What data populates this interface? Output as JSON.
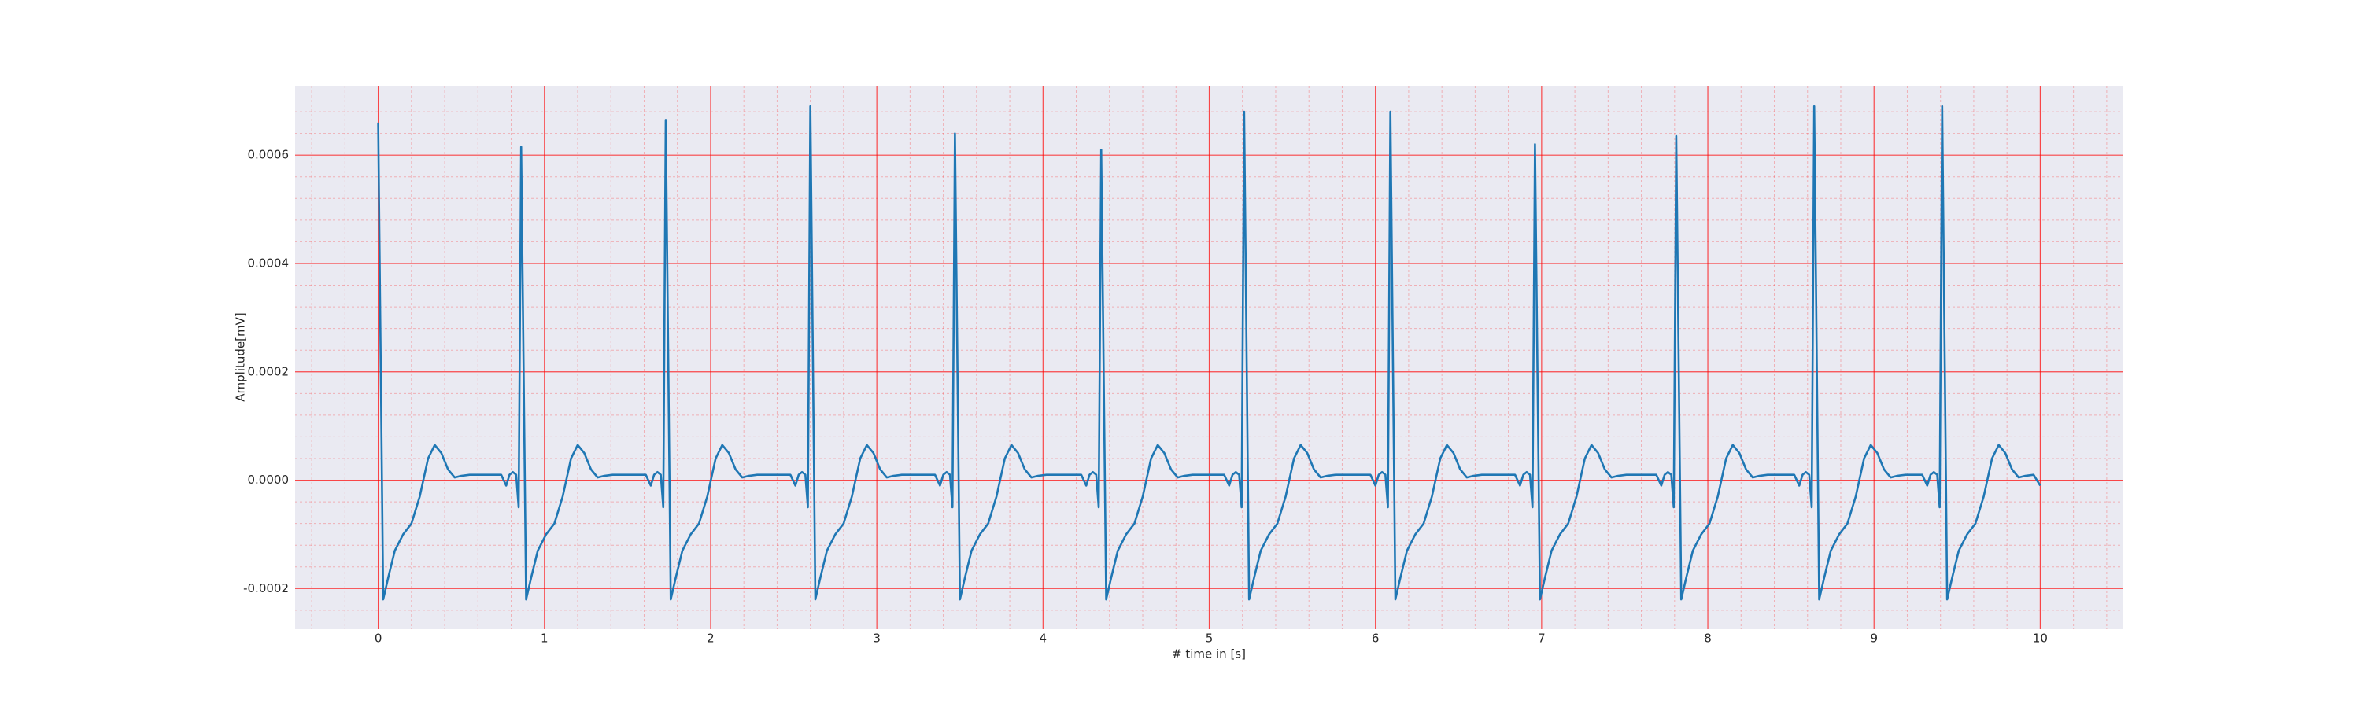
{
  "chart_data": {
    "type": "line",
    "xlabel": "# time in [s]",
    "ylabel": "Amplitude[mV]",
    "color": "#1f77b4",
    "grid": true,
    "grid_color": "#ff0000",
    "background": "#eaeaf2",
    "xlim": [
      -0.5,
      10.5
    ],
    "ylim": [
      -0.000275,
      0.000728
    ],
    "xticks": [
      0,
      1,
      2,
      3,
      4,
      5,
      6,
      7,
      8,
      9,
      10
    ],
    "yticks": [
      -0.0002,
      {
        "value": 0,
        "label": "0.0000"
      },
      0.0002,
      0.0004,
      0.0006
    ],
    "xminorticks": [
      -0.4,
      -0.2,
      0.2,
      0.4,
      0.6,
      0.8,
      1.2,
      1.4,
      1.6,
      1.8,
      2.2,
      2.4,
      2.6,
      2.8,
      3.2,
      3.4,
      3.6,
      3.8,
      4.2,
      4.4,
      4.6,
      4.8,
      5.2,
      5.4,
      5.6,
      5.8,
      6.2,
      6.4,
      6.6,
      6.8,
      7.2,
      7.4,
      7.6,
      7.8,
      8.2,
      8.4,
      8.6,
      8.8,
      9.2,
      9.4,
      9.6,
      9.8,
      10.2,
      10.4
    ],
    "yminorticks": [
      -0.00024,
      -0.00016,
      -0.00012,
      -8e-05,
      -4e-05,
      4e-05,
      8e-05,
      0.00012,
      0.00016,
      0.00024,
      0.00028,
      0.00032,
      0.00036,
      0.00044,
      0.00048,
      0.00052,
      0.00056,
      0.00064,
      0.00068,
      0.00072
    ],
    "x": [
      0,
      0.03,
      0.06,
      0.1,
      0.15,
      0.2,
      0.25,
      0.3,
      0.34,
      0.38,
      0.42,
      0.46,
      0.5,
      0.55,
      0.74,
      0.77,
      0.79,
      0.81,
      0.83,
      0.845,
      0.86,
      0.89,
      0.92,
      0.96,
      1.01,
      1.06,
      1.11,
      1.16,
      1.2,
      1.24,
      1.28,
      1.32,
      1.36,
      1.41,
      1.61,
      1.64,
      1.66,
      1.68,
      1.7,
      1.715,
      1.73,
      1.76,
      1.79,
      1.83,
      1.88,
      1.93,
      1.98,
      2.03,
      2.07,
      2.11,
      2.15,
      2.19,
      2.23,
      2.28,
      2.48,
      2.51,
      2.53,
      2.55,
      2.57,
      2.585,
      2.6,
      2.63,
      2.66,
      2.7,
      2.75,
      2.8,
      2.85,
      2.9,
      2.94,
      2.98,
      3.02,
      3.06,
      3.1,
      3.15,
      3.35,
      3.38,
      3.4,
      3.42,
      3.44,
      3.455,
      3.47,
      3.5,
      3.53,
      3.57,
      3.62,
      3.67,
      3.72,
      3.77,
      3.81,
      3.85,
      3.89,
      3.93,
      3.97,
      4.02,
      4.23,
      4.26,
      4.28,
      4.3,
      4.32,
      4.335,
      4.35,
      4.38,
      4.41,
      4.45,
      4.5,
      4.55,
      4.6,
      4.65,
      4.69,
      4.73,
      4.77,
      4.81,
      4.85,
      4.9,
      5.09,
      5.12,
      5.14,
      5.16,
      5.18,
      5.195,
      5.21,
      5.24,
      5.27,
      5.31,
      5.36,
      5.41,
      5.46,
      5.51,
      5.55,
      5.59,
      5.63,
      5.67,
      5.71,
      5.76,
      5.97,
      6.0,
      6.02,
      6.04,
      6.06,
      6.075,
      6.09,
      6.12,
      6.15,
      6.19,
      6.24,
      6.29,
      6.34,
      6.39,
      6.43,
      6.47,
      6.51,
      6.55,
      6.59,
      6.64,
      6.84,
      6.87,
      6.89,
      6.91,
      6.93,
      6.945,
      6.96,
      6.99,
      7.02,
      7.06,
      7.11,
      7.16,
      7.21,
      7.26,
      7.3,
      7.34,
      7.38,
      7.42,
      7.46,
      7.51,
      7.69,
      7.72,
      7.74,
      7.76,
      7.78,
      7.795,
      7.81,
      7.84,
      7.87,
      7.91,
      7.96,
      8.01,
      8.06,
      8.11,
      8.15,
      8.19,
      8.23,
      8.27,
      8.31,
      8.36,
      8.52,
      8.55,
      8.57,
      8.59,
      8.61,
      8.625,
      8.64,
      8.67,
      8.7,
      8.74,
      8.79,
      8.84,
      8.89,
      8.94,
      8.98,
      9.02,
      9.06,
      9.1,
      9.14,
      9.19,
      9.29,
      9.32,
      9.34,
      9.36,
      9.38,
      9.395,
      9.41,
      9.44,
      9.47,
      9.51,
      9.56,
      9.61,
      9.66,
      9.71,
      9.75,
      9.79,
      9.83,
      9.87,
      9.91,
      9.96,
      10.0
    ],
    "values": [
      0.00066,
      -0.00022,
      -0.00018,
      -0.00013,
      -0.0001,
      -8e-05,
      -3e-05,
      4e-05,
      6.5e-05,
      5e-05,
      2e-05,
      5e-06,
      8e-06,
      1e-05,
      1e-05,
      -1e-05,
      1e-05,
      1.5e-05,
      1e-05,
      -5e-05,
      0.000615,
      -0.00022,
      -0.00018,
      -0.00013,
      -0.0001,
      -8e-05,
      -3e-05,
      4e-05,
      6.5e-05,
      5e-05,
      2e-05,
      5e-06,
      8e-06,
      1e-05,
      1e-05,
      -1e-05,
      1e-05,
      1.5e-05,
      1e-05,
      -5e-05,
      0.000665,
      -0.00022,
      -0.00018,
      -0.00013,
      -0.0001,
      -8e-05,
      -3e-05,
      4e-05,
      6.5e-05,
      5e-05,
      2e-05,
      5e-06,
      8e-06,
      1e-05,
      1e-05,
      -1e-05,
      1e-05,
      1.5e-05,
      1e-05,
      -5e-05,
      0.00069,
      -0.00022,
      -0.00018,
      -0.00013,
      -0.0001,
      -8e-05,
      -3e-05,
      4e-05,
      6.5e-05,
      5e-05,
      2e-05,
      5e-06,
      8e-06,
      1e-05,
      1e-05,
      -1e-05,
      1e-05,
      1.5e-05,
      1e-05,
      -5e-05,
      0.00064,
      -0.00022,
      -0.00018,
      -0.00013,
      -0.0001,
      -8e-05,
      -3e-05,
      4e-05,
      6.5e-05,
      5e-05,
      2e-05,
      5e-06,
      8e-06,
      1e-05,
      1e-05,
      -1e-05,
      1e-05,
      1.5e-05,
      1e-05,
      -5e-05,
      0.00061,
      -0.00022,
      -0.00018,
      -0.00013,
      -0.0001,
      -8e-05,
      -3e-05,
      4e-05,
      6.5e-05,
      5e-05,
      2e-05,
      5e-06,
      8e-06,
      1e-05,
      1e-05,
      -1e-05,
      1e-05,
      1.5e-05,
      1e-05,
      -5e-05,
      0.00068,
      -0.00022,
      -0.00018,
      -0.00013,
      -0.0001,
      -8e-05,
      -3e-05,
      4e-05,
      6.5e-05,
      5e-05,
      2e-05,
      5e-06,
      8e-06,
      1e-05,
      1e-05,
      -1e-05,
      1e-05,
      1.5e-05,
      1e-05,
      -5e-05,
      0.00068,
      -0.00022,
      -0.00018,
      -0.00013,
      -0.0001,
      -8e-05,
      -3e-05,
      4e-05,
      6.5e-05,
      5e-05,
      2e-05,
      5e-06,
      8e-06,
      1e-05,
      1e-05,
      -1e-05,
      1e-05,
      1.5e-05,
      1e-05,
      -5e-05,
      0.00062,
      -0.00022,
      -0.00018,
      -0.00013,
      -0.0001,
      -8e-05,
      -3e-05,
      4e-05,
      6.5e-05,
      5e-05,
      2e-05,
      5e-06,
      8e-06,
      1e-05,
      1e-05,
      -1e-05,
      1e-05,
      1.5e-05,
      1e-05,
      -5e-05,
      0.000635,
      -0.00022,
      -0.00018,
      -0.00013,
      -0.0001,
      -8e-05,
      -3e-05,
      4e-05,
      6.5e-05,
      5e-05,
      2e-05,
      5e-06,
      8e-06,
      1e-05,
      1e-05,
      -1e-05,
      1e-05,
      1.5e-05,
      1e-05,
      -5e-05,
      0.00069,
      -0.00022,
      -0.00018,
      -0.00013,
      -0.0001,
      -8e-05,
      -3e-05,
      4e-05,
      6.5e-05,
      5e-05,
      2e-05,
      5e-06,
      8e-06,
      1e-05,
      1e-05,
      -1e-05,
      1e-05,
      1.5e-05,
      1e-05,
      -5e-05,
      0.00069,
      -0.00022,
      -0.00018,
      -0.00013,
      -0.0001,
      -8e-05,
      -3e-05,
      4e-05,
      6.5e-05,
      5e-05,
      2e-05,
      5e-06,
      8e-06,
      1e-05,
      -1e-05
    ]
  }
}
